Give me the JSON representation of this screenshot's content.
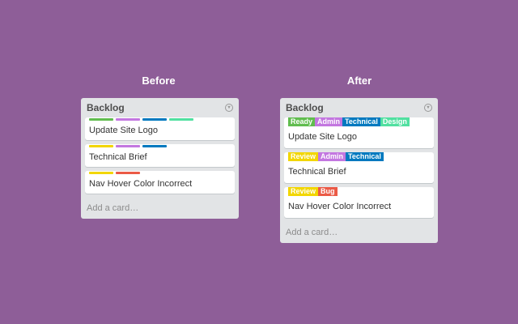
{
  "headings": {
    "before": "Before",
    "after": "After"
  },
  "colors": {
    "background": "#8e5e98",
    "green": "#61bd4f",
    "purple": "#c377e0",
    "blue": "#0079bf",
    "teal": "#51e0a0",
    "yellow": "#f2d600",
    "red": "#eb5a46"
  },
  "before": {
    "title": "Backlog",
    "menu_icon": "chevron-down-circle-icon",
    "add_card": "Add a card…",
    "cards": [
      {
        "title": "Update Site Logo",
        "labels": [
          "#61bd4f",
          "#c377e0",
          "#0079bf",
          "#51e0a0"
        ]
      },
      {
        "title": "Technical Brief",
        "labels": [
          "#f2d600",
          "#c377e0",
          "#0079bf"
        ]
      },
      {
        "title": "Nav Hover Color Incorrect",
        "labels": [
          "#f2d600",
          "#eb5a46"
        ]
      }
    ]
  },
  "after": {
    "title": "Backlog",
    "menu_icon": "chevron-down-circle-icon",
    "add_card": "Add a card…",
    "cards": [
      {
        "title": "Update Site Logo",
        "labels": [
          {
            "text": "Ready",
            "color": "#61bd4f"
          },
          {
            "text": "Admin",
            "color": "#c377e0"
          },
          {
            "text": "Technical",
            "color": "#0079bf"
          },
          {
            "text": "Design",
            "color": "#51e0a0"
          }
        ]
      },
      {
        "title": "Technical Brief",
        "labels": [
          {
            "text": "Review",
            "color": "#f2d600"
          },
          {
            "text": "Admin",
            "color": "#c377e0"
          },
          {
            "text": "Technical",
            "color": "#0079bf"
          }
        ]
      },
      {
        "title": "Nav Hover Color Incorrect",
        "labels": [
          {
            "text": "Review",
            "color": "#f2d600"
          },
          {
            "text": "Bug",
            "color": "#eb5a46"
          }
        ]
      }
    ]
  }
}
